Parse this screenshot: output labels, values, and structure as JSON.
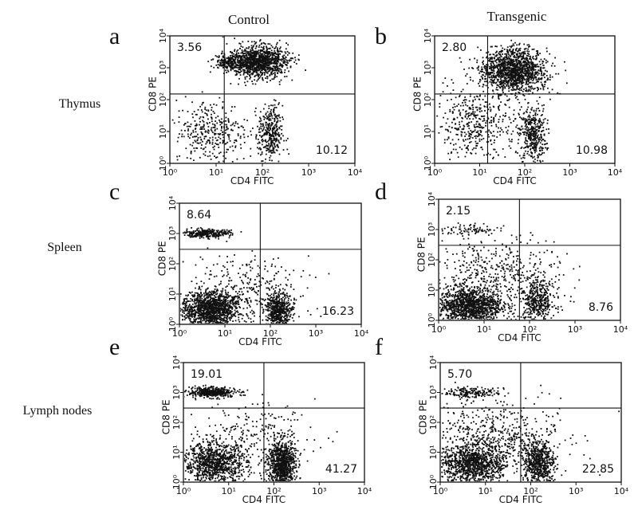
{
  "figure": {
    "column_titles": [
      "Control",
      "Transgenic"
    ],
    "row_labels": [
      "Thymus",
      "Spleen",
      "Lymph nodes"
    ]
  },
  "chart_data": [
    {
      "type": "scatter",
      "panel": "a",
      "tissue": "Thymus",
      "group": "Control",
      "xlabel": "CD4 FITC",
      "ylabel": "CD8 PE",
      "xscale": "log",
      "yscale": "log",
      "xlim": [
        1,
        10000
      ],
      "ylim": [
        1,
        10000
      ],
      "x_ticks": [
        "10⁰",
        "10¹",
        "10²",
        "10³",
        "10⁴"
      ],
      "y_ticks": [
        "10⁰",
        "10¹",
        "10²",
        "10³",
        "10⁴"
      ],
      "quadrant_gates": {
        "x": 15,
        "y": 150
      },
      "quadrant_percentages": {
        "upper_left": "3.56",
        "lower_right": "10.12"
      },
      "populations": [
        {
          "x": 80,
          "y": 1500,
          "sx": 0.32,
          "sy": 0.25,
          "n": 1200
        },
        {
          "x": 20,
          "y": 1500,
          "sx": 0.16,
          "sy": 0.1,
          "n": 150
        },
        {
          "x": 150,
          "y": 8,
          "sx": 0.13,
          "sy": 0.45,
          "n": 350
        },
        {
          "x": 8,
          "y": 10,
          "sx": 0.4,
          "sy": 0.5,
          "n": 350
        }
      ]
    },
    {
      "type": "scatter",
      "panel": "b",
      "tissue": "Thymus",
      "group": "Transgenic",
      "xlabel": "CD4 FITC",
      "ylabel": "CD8 PE",
      "xscale": "log",
      "yscale": "log",
      "xlim": [
        1,
        10000
      ],
      "ylim": [
        1,
        10000
      ],
      "x_ticks": [
        "10⁰",
        "10¹",
        "10²",
        "10³",
        "10⁴"
      ],
      "y_ticks": [
        "10⁰",
        "10¹",
        "10²",
        "10³",
        "10⁴"
      ],
      "quadrant_gates": {
        "x": 15,
        "y": 150
      },
      "quadrant_percentages": {
        "upper_left": "2.80",
        "lower_right": "10.98"
      },
      "populations": [
        {
          "x": 60,
          "y": 800,
          "sx": 0.35,
          "sy": 0.35,
          "n": 1300
        },
        {
          "x": 150,
          "y": 8,
          "sx": 0.15,
          "sy": 0.45,
          "n": 400
        },
        {
          "x": 8,
          "y": 15,
          "sx": 0.45,
          "sy": 0.6,
          "n": 450
        },
        {
          "x": 20,
          "y": 1000,
          "sx": 0.2,
          "sy": 0.2,
          "n": 100
        }
      ]
    },
    {
      "type": "scatter",
      "panel": "c",
      "tissue": "Spleen",
      "group": "Control",
      "xlabel": "CD4 FITC",
      "ylabel": "CD8 PE",
      "xscale": "log",
      "yscale": "log",
      "xlim": [
        1,
        10000
      ],
      "ylim": [
        1,
        10000
      ],
      "x_ticks": [
        "10⁰",
        "10¹",
        "10²",
        "10³",
        "10⁴"
      ],
      "y_ticks": [
        "10⁰",
        "10¹",
        "10²",
        "10³",
        "10⁴"
      ],
      "quadrant_gates": {
        "x": 60,
        "y": 300
      },
      "quadrant_percentages": {
        "upper_left": "8.64",
        "lower_right": "16.23"
      },
      "populations": [
        {
          "x": 4,
          "y": 1000,
          "sx": 0.25,
          "sy": 0.07,
          "n": 280
        },
        {
          "x": 5,
          "y": 3,
          "sx": 0.32,
          "sy": 0.3,
          "n": 1300
        },
        {
          "x": 150,
          "y": 3,
          "sx": 0.15,
          "sy": 0.3,
          "n": 550
        },
        {
          "x": 30,
          "y": 20,
          "sx": 0.6,
          "sy": 0.5,
          "n": 250
        }
      ]
    },
    {
      "type": "scatter",
      "panel": "d",
      "tissue": "Spleen",
      "group": "Transgenic",
      "xlabel": "CD4 FITC",
      "ylabel": "CD8 PE",
      "xscale": "log",
      "yscale": "log",
      "xlim": [
        1,
        10000
      ],
      "ylim": [
        1,
        10000
      ],
      "x_ticks": [
        "10⁰",
        "10¹",
        "10²",
        "10³",
        "10⁴"
      ],
      "y_ticks": [
        "10⁰",
        "10¹",
        "10²",
        "10³",
        "10⁴"
      ],
      "quadrant_gates": {
        "x": 60,
        "y": 300
      },
      "quadrant_percentages": {
        "upper_left": "2.15",
        "lower_right": "8.76"
      },
      "populations": [
        {
          "x": 5,
          "y": 1000,
          "sx": 0.3,
          "sy": 0.1,
          "n": 80
        },
        {
          "x": 5,
          "y": 3,
          "sx": 0.35,
          "sy": 0.3,
          "n": 1200
        },
        {
          "x": 150,
          "y": 4,
          "sx": 0.2,
          "sy": 0.35,
          "n": 400
        },
        {
          "x": 20,
          "y": 30,
          "sx": 0.7,
          "sy": 0.6,
          "n": 500
        }
      ]
    },
    {
      "type": "scatter",
      "panel": "e",
      "tissue": "Lymph nodes",
      "group": "Control",
      "xlabel": "CD4 FITC",
      "ylabel": "CD8 PE",
      "xscale": "log",
      "yscale": "log",
      "xlim": [
        1,
        10000
      ],
      "ylim": [
        1,
        10000
      ],
      "x_ticks": [
        "10⁰",
        "10¹",
        "10²",
        "10³",
        "10⁴"
      ],
      "y_ticks": [
        "10⁰",
        "10¹",
        "10²",
        "10³",
        "10⁴"
      ],
      "quadrant_gates": {
        "x": 60,
        "y": 300
      },
      "quadrant_percentages": {
        "upper_left": "19.01",
        "lower_right": "41.27"
      },
      "populations": [
        {
          "x": 4,
          "y": 1000,
          "sx": 0.28,
          "sy": 0.08,
          "n": 450
        },
        {
          "x": 5,
          "y": 4,
          "sx": 0.35,
          "sy": 0.35,
          "n": 1000
        },
        {
          "x": 150,
          "y": 4,
          "sx": 0.15,
          "sy": 0.4,
          "n": 900
        },
        {
          "x": 30,
          "y": 30,
          "sx": 0.7,
          "sy": 0.6,
          "n": 250
        }
      ]
    },
    {
      "type": "scatter",
      "panel": "f",
      "tissue": "Lymph nodes",
      "group": "Transgenic",
      "xlabel": "CD4 FITC",
      "ylabel": "CD8 PE",
      "xscale": "log",
      "yscale": "log",
      "xlim": [
        1,
        10000
      ],
      "ylim": [
        1,
        10000
      ],
      "x_ticks": [
        "10⁰",
        "10¹",
        "10²",
        "10³",
        "10⁴"
      ],
      "y_ticks": [
        "10⁰",
        "10¹",
        "10²",
        "10³",
        "10⁴"
      ],
      "quadrant_gates": {
        "x": 60,
        "y": 300
      },
      "quadrant_percentages": {
        "upper_left": "5.70",
        "lower_right": "22.85"
      },
      "populations": [
        {
          "x": 5,
          "y": 1000,
          "sx": 0.3,
          "sy": 0.1,
          "n": 180
        },
        {
          "x": 5,
          "y": 4,
          "sx": 0.38,
          "sy": 0.35,
          "n": 1100
        },
        {
          "x": 150,
          "y": 4,
          "sx": 0.18,
          "sy": 0.4,
          "n": 650
        },
        {
          "x": 20,
          "y": 40,
          "sx": 0.7,
          "sy": 0.6,
          "n": 500
        }
      ]
    }
  ]
}
